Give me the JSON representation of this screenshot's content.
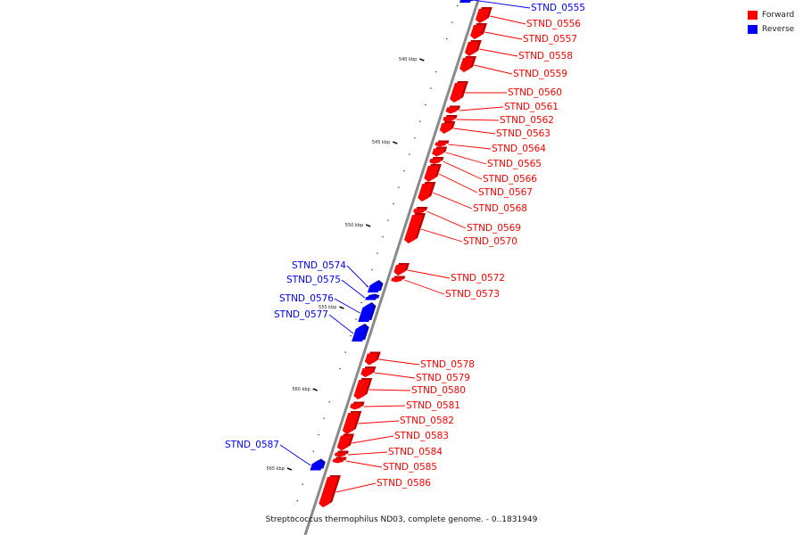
{
  "colors": {
    "forward": "#ff0000",
    "reverse": "#0000ff",
    "backbone": "#8a8a8a"
  },
  "legend": [
    {
      "label": "Forward",
      "color": "#ff0000"
    },
    {
      "label": "Reverse",
      "color": "#0000ff"
    }
  ],
  "caption": "Streptococcus thermophilus ND03, complete genome. - 0..1831949",
  "ticks": [
    "540 kbp",
    "545 kbp",
    "550 kbp",
    "555 kbp",
    "560 kbp",
    "565 kbp"
  ],
  "genes": [
    {
      "id": "STND_0555",
      "strand": "reverse"
    },
    {
      "id": "STND_0556",
      "strand": "forward"
    },
    {
      "id": "STND_0557",
      "strand": "forward"
    },
    {
      "id": "STND_0558",
      "strand": "forward"
    },
    {
      "id": "STND_0559",
      "strand": "forward"
    },
    {
      "id": "STND_0560",
      "strand": "forward"
    },
    {
      "id": "STND_0561",
      "strand": "forward"
    },
    {
      "id": "STND_0562",
      "strand": "forward"
    },
    {
      "id": "STND_0563",
      "strand": "forward"
    },
    {
      "id": "STND_0564",
      "strand": "forward"
    },
    {
      "id": "STND_0565",
      "strand": "forward"
    },
    {
      "id": "STND_0566",
      "strand": "forward"
    },
    {
      "id": "STND_0567",
      "strand": "forward"
    },
    {
      "id": "STND_0568",
      "strand": "forward"
    },
    {
      "id": "STND_0569",
      "strand": "forward"
    },
    {
      "id": "STND_0570",
      "strand": "forward"
    },
    {
      "id": "STND_0572",
      "strand": "forward"
    },
    {
      "id": "STND_0573",
      "strand": "forward"
    },
    {
      "id": "STND_0574",
      "strand": "reverse"
    },
    {
      "id": "STND_0575",
      "strand": "reverse"
    },
    {
      "id": "STND_0576",
      "strand": "reverse"
    },
    {
      "id": "STND_0577",
      "strand": "reverse"
    },
    {
      "id": "STND_0578",
      "strand": "forward"
    },
    {
      "id": "STND_0579",
      "strand": "forward"
    },
    {
      "id": "STND_0580",
      "strand": "forward"
    },
    {
      "id": "STND_0581",
      "strand": "forward"
    },
    {
      "id": "STND_0582",
      "strand": "forward"
    },
    {
      "id": "STND_0583",
      "strand": "forward"
    },
    {
      "id": "STND_0584",
      "strand": "forward"
    },
    {
      "id": "STND_0585",
      "strand": "forward"
    },
    {
      "id": "STND_0586",
      "strand": "forward"
    },
    {
      "id": "STND_0587",
      "strand": "reverse"
    }
  ]
}
